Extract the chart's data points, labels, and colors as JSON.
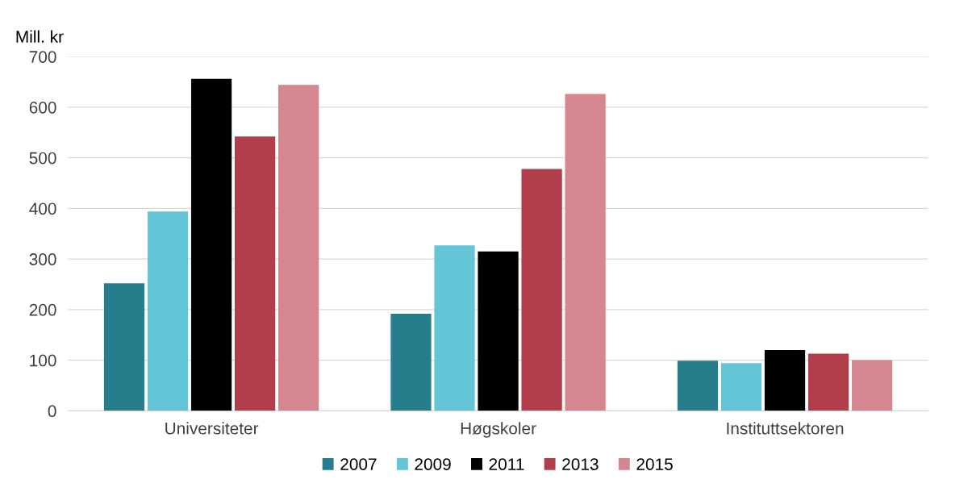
{
  "chart_data": {
    "type": "bar",
    "ylabel": "Mill. kr",
    "categories": [
      "Universiteter",
      "Høgskoler",
      "Instituttsektoren"
    ],
    "series": [
      {
        "name": "2007",
        "color": "#267d8c",
        "values": [
          252,
          192,
          99
        ]
      },
      {
        "name": "2009",
        "color": "#63c5d6",
        "values": [
          394,
          327,
          94
        ]
      },
      {
        "name": "2011",
        "color": "#000000",
        "values": [
          656,
          315,
          120
        ]
      },
      {
        "name": "2013",
        "color": "#b23e4c",
        "values": [
          542,
          478,
          113
        ]
      },
      {
        "name": "2015",
        "color": "#d4878f",
        "values": [
          644,
          626,
          100
        ]
      }
    ],
    "ylim": [
      0,
      700
    ],
    "yticks": [
      0,
      100,
      200,
      300,
      400,
      500,
      600,
      700
    ],
    "grid": "y",
    "legend": "bottom"
  }
}
